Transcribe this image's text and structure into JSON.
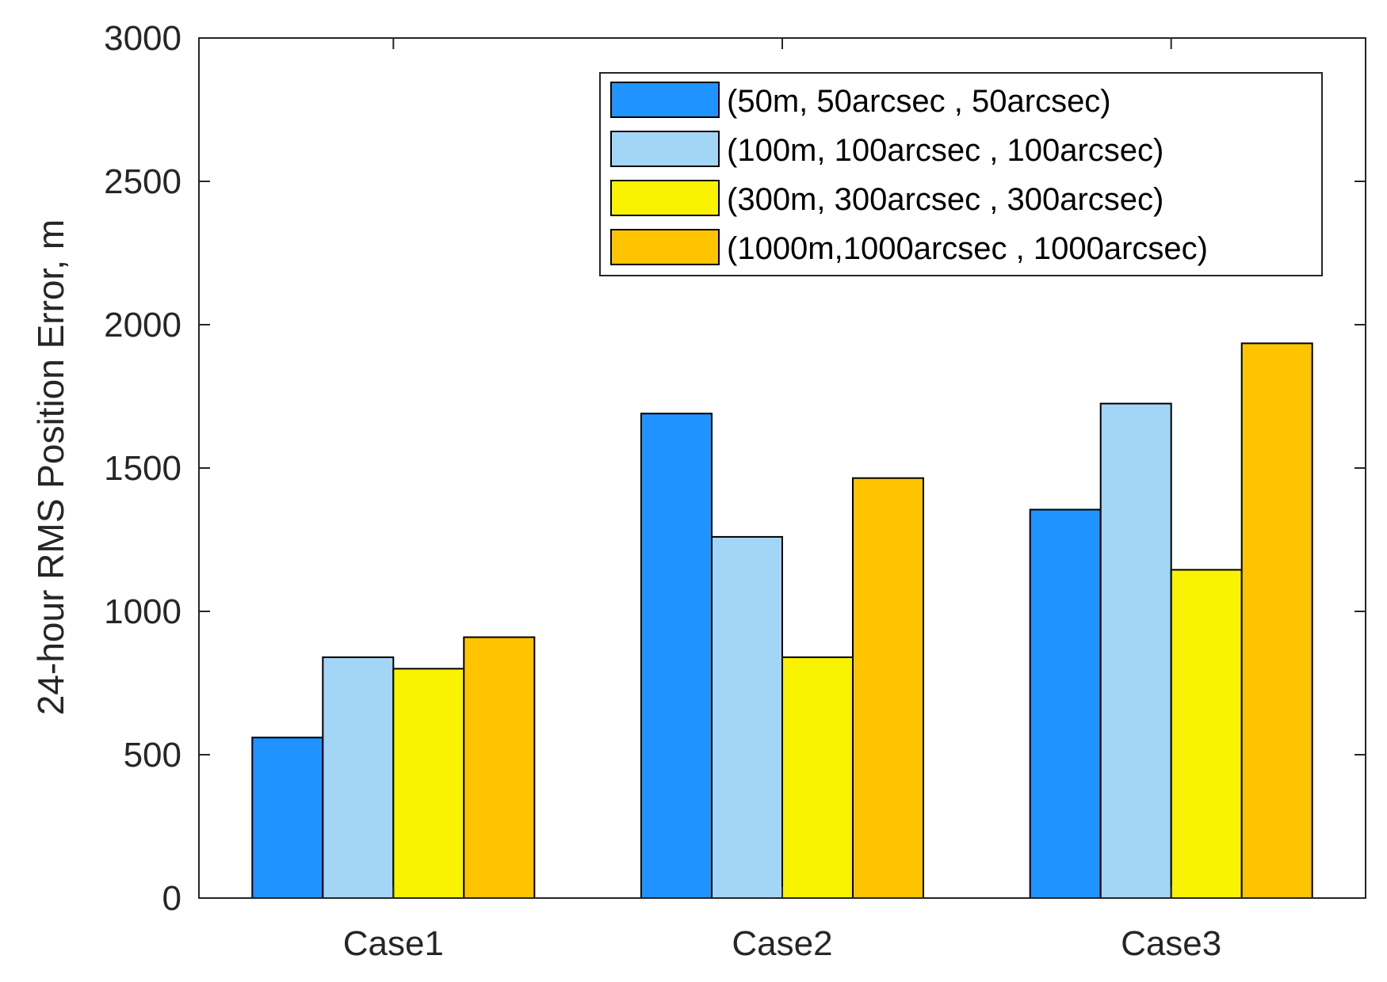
{
  "chart_data": {
    "type": "bar",
    "title": "",
    "xlabel": "",
    "ylabel": "24-hour RMS Position Error, m",
    "categories": [
      "Case1",
      "Case2",
      "Case3"
    ],
    "ylim": [
      0,
      3000
    ],
    "yticks": [
      0,
      500,
      1000,
      1500,
      2000,
      2500,
      3000
    ],
    "yticklabels": [
      "0",
      "500",
      "1000",
      "1500",
      "2000",
      "2500",
      "3000"
    ],
    "grid": false,
    "legend_position": "top-right",
    "series": [
      {
        "name": "(50m, 50arcsec , 50arcsec)",
        "color": "#1f93ff",
        "values": [
          560,
          1690,
          1355
        ]
      },
      {
        "name": "(100m, 100arcsec , 100arcsec)",
        "color": "#a3d5f7",
        "values": [
          840,
          1260,
          1725
        ]
      },
      {
        "name": "(300m, 300arcsec , 300arcsec)",
        "color": "#f9f200",
        "values": [
          800,
          840,
          1145
        ]
      },
      {
        "name": "(1000m,1000arcsec , 1000arcsec)",
        "color": "#ffc400",
        "values": [
          910,
          1465,
          1935
        ]
      }
    ]
  }
}
